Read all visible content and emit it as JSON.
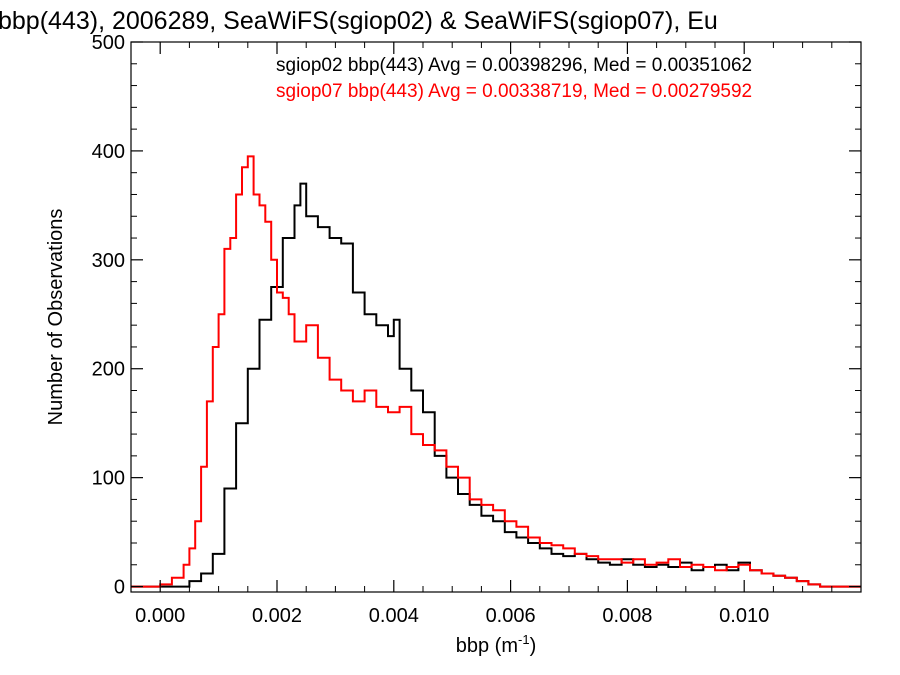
{
  "chart_data": {
    "type": "line",
    "title": "bbp(443), 2006289, SeaWiFS(sgiop02) & SeaWiFS(sgiop07), Eu",
    "xlabel": "bbp (m",
    "xlabel_sup": "-1",
    "xlabel_close": ")",
    "ylabel": "Number of Observations",
    "xlim": [
      -0.0005,
      0.012
    ],
    "ylim": [
      -5,
      500
    ],
    "x_ticks": [
      {
        "v": 0.0,
        "label": "0.000"
      },
      {
        "v": 0.002,
        "label": "0.002"
      },
      {
        "v": 0.004,
        "label": "0.004"
      },
      {
        "v": 0.006,
        "label": "0.006"
      },
      {
        "v": 0.008,
        "label": "0.008"
      },
      {
        "v": 0.01,
        "label": "0.010"
      }
    ],
    "y_ticks": [
      {
        "v": 0,
        "label": "0"
      },
      {
        "v": 100,
        "label": "100"
      },
      {
        "v": 200,
        "label": "200"
      },
      {
        "v": 300,
        "label": "300"
      },
      {
        "v": 400,
        "label": "400"
      },
      {
        "v": 500,
        "label": "500"
      }
    ],
    "annotations": [
      {
        "text": "sgiop02 bbp(443) Avg = 0.00398296, Med = 0.00351062",
        "color": "#000000"
      },
      {
        "text": "sgiop07 bbp(443) Avg = 0.00338719, Med = 0.00279592",
        "color": "#ff0000"
      }
    ],
    "series": [
      {
        "name": "sgiop02",
        "color": "#000000",
        "x": [
          -0.0005,
          0.0003,
          0.0005,
          0.0007,
          0.0009,
          0.0011,
          0.0013,
          0.0015,
          0.0017,
          0.0019,
          0.0021,
          0.0023,
          0.0024,
          0.0025,
          0.0027,
          0.0029,
          0.0031,
          0.0033,
          0.0035,
          0.0037,
          0.0039,
          0.004,
          0.0041,
          0.0043,
          0.0045,
          0.0047,
          0.0049,
          0.0051,
          0.0053,
          0.0055,
          0.0057,
          0.0059,
          0.0061,
          0.0063,
          0.0065,
          0.0067,
          0.0069,
          0.0071,
          0.0073,
          0.0075,
          0.0077,
          0.0079,
          0.0081,
          0.0083,
          0.0085,
          0.0087,
          0.0089,
          0.0091,
          0.0093,
          0.0095,
          0.0097,
          0.0099,
          0.0101,
          0.0103,
          0.0105,
          0.0107,
          0.0109,
          0.0111,
          0.0113,
          0.0115,
          0.012
        ],
        "values": [
          0,
          0,
          5,
          12,
          30,
          90,
          150,
          200,
          245,
          275,
          320,
          350,
          370,
          340,
          330,
          320,
          315,
          270,
          250,
          240,
          230,
          245,
          200,
          180,
          160,
          120,
          100,
          85,
          75,
          65,
          60,
          50,
          45,
          40,
          35,
          30,
          28,
          30,
          25,
          22,
          20,
          25,
          20,
          18,
          20,
          18,
          22,
          15,
          18,
          20,
          15,
          22,
          15,
          12,
          10,
          8,
          5,
          2,
          0,
          0,
          0
        ]
      },
      {
        "name": "sgiop07",
        "color": "#ff0000",
        "x": [
          -0.0005,
          0.0,
          0.0002,
          0.0004,
          0.0005,
          0.0006,
          0.0007,
          0.0008,
          0.0009,
          0.001,
          0.0011,
          0.0012,
          0.0013,
          0.0014,
          0.0015,
          0.0016,
          0.0017,
          0.0018,
          0.0019,
          0.002,
          0.0021,
          0.0022,
          0.0023,
          0.0025,
          0.0027,
          0.0029,
          0.0031,
          0.0033,
          0.0035,
          0.0037,
          0.0039,
          0.0041,
          0.0043,
          0.0045,
          0.0047,
          0.0049,
          0.0051,
          0.0053,
          0.0055,
          0.0057,
          0.0059,
          0.0061,
          0.0063,
          0.0065,
          0.0067,
          0.0069,
          0.0071,
          0.0073,
          0.0075,
          0.0077,
          0.0079,
          0.0081,
          0.0083,
          0.0085,
          0.0087,
          0.0089,
          0.0091,
          0.0093,
          0.0095,
          0.0097,
          0.0099,
          0.0101,
          0.0103,
          0.0105,
          0.0107,
          0.0109,
          0.0111,
          0.0113,
          0.0115,
          0.012
        ],
        "values": [
          0,
          2,
          8,
          20,
          35,
          60,
          110,
          170,
          220,
          250,
          310,
          320,
          360,
          385,
          395,
          360,
          350,
          335,
          300,
          270,
          265,
          250,
          225,
          240,
          210,
          190,
          180,
          170,
          180,
          165,
          160,
          165,
          140,
          130,
          125,
          110,
          100,
          80,
          75,
          70,
          60,
          55,
          45,
          40,
          38,
          35,
          30,
          28,
          25,
          25,
          22,
          25,
          20,
          22,
          25,
          18,
          20,
          18,
          15,
          18,
          20,
          15,
          12,
          10,
          8,
          5,
          2,
          0,
          0,
          0
        ]
      }
    ]
  }
}
